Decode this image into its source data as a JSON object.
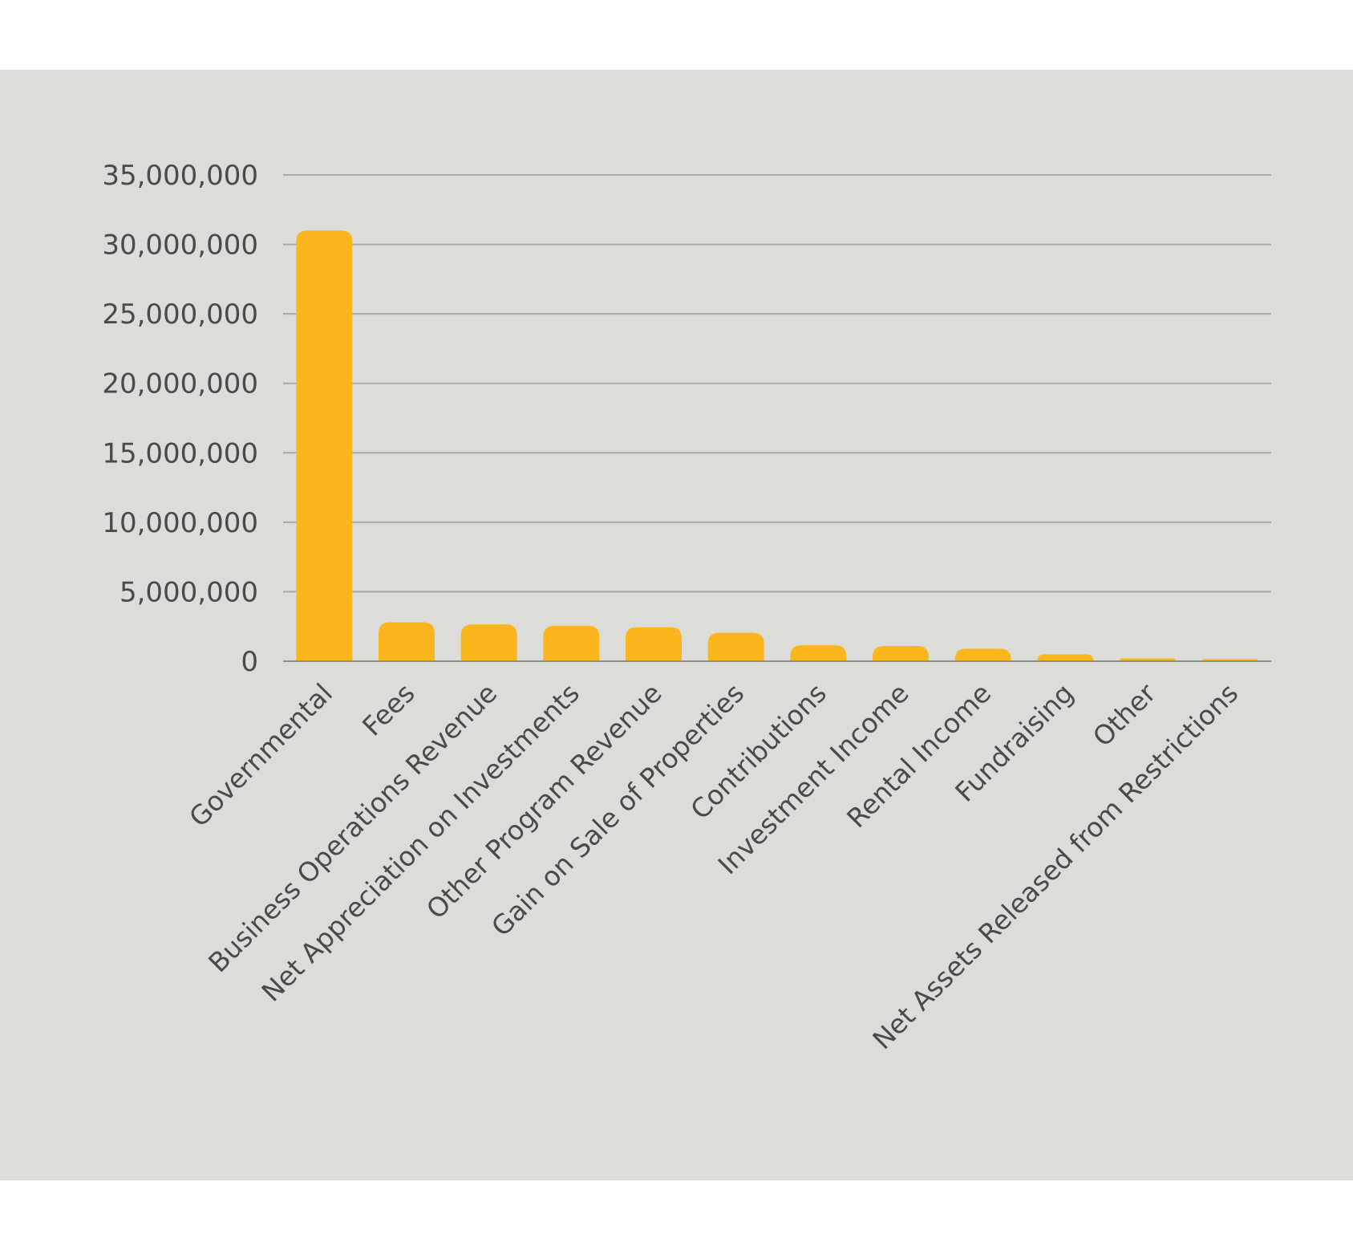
{
  "colors": {
    "bar": "#fbb61e",
    "panel_background": "#dcddd8",
    "gridline": "#a8aaa6",
    "text": "#4a4a4a"
  },
  "chart_data": {
    "type": "bar",
    "title": "",
    "xlabel": "",
    "ylabel": "",
    "ylim": [
      0,
      35000000
    ],
    "grid": true,
    "yticks": [
      0,
      5000000,
      10000000,
      15000000,
      20000000,
      25000000,
      30000000,
      35000000
    ],
    "ytick_labels": [
      "0",
      "5,000,000",
      "10,000,000",
      "15,000,000",
      "20,000,000",
      "25,000,000",
      "30,000,000",
      "35,000,000"
    ],
    "categories": [
      "Governmental",
      "Fees",
      "Business Operations Revenue",
      "Net Appreciation on Investments",
      "Other Program Revenue",
      "Gain on Sale of Properties",
      "Contributions",
      "Investment Income",
      "Rental Income",
      "Fundraising",
      "Other",
      "Net Assets Released from Restrictions"
    ],
    "values": [
      31000000,
      2800000,
      2650000,
      2550000,
      2450000,
      2050000,
      1150000,
      1100000,
      900000,
      500000,
      200000,
      150000
    ]
  }
}
